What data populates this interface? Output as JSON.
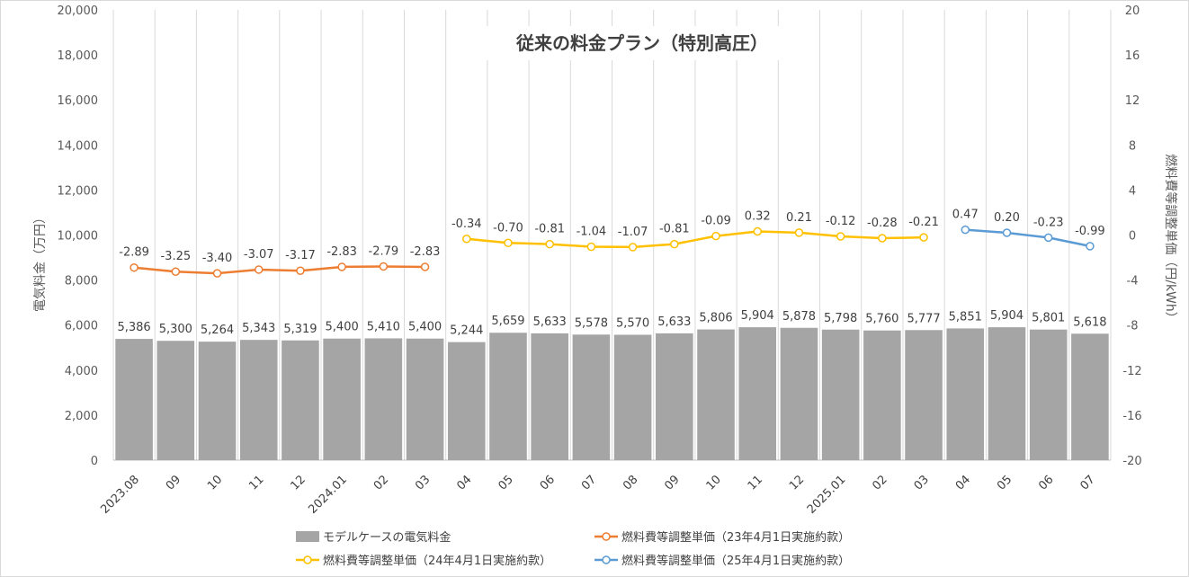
{
  "chart_data": {
    "type": "bar",
    "title": "従来の料金プラン（特別高圧）",
    "categories": [
      "2023.08",
      "09",
      "10",
      "11",
      "12",
      "2024.01",
      "02",
      "03",
      "04",
      "05",
      "06",
      "07",
      "08",
      "09",
      "10",
      "11",
      "12",
      "2025.01",
      "02",
      "03",
      "04",
      "05",
      "06",
      "07"
    ],
    "y_left": {
      "label": "電気料金（万円）",
      "range": [
        0,
        20000
      ],
      "ticks": [
        "0",
        "2,000",
        "4,000",
        "6,000",
        "8,000",
        "10,000",
        "12,000",
        "14,000",
        "16,000",
        "18,000",
        "20,000"
      ]
    },
    "y_right": {
      "label": "燃料費等調整単価（円/kWh）",
      "range": [
        -20,
        20
      ],
      "ticks": [
        "-20",
        "-16",
        "-12",
        "-8",
        "-4",
        "0",
        "4",
        "8",
        "12",
        "16",
        "20"
      ]
    },
    "bar_series": {
      "name": "モデルケースの電気料金",
      "color": "#a5a5a5",
      "values": [
        5386,
        5300,
        5264,
        5343,
        5319,
        5400,
        5410,
        5400,
        5244,
        5659,
        5633,
        5578,
        5570,
        5633,
        5806,
        5904,
        5878,
        5798,
        5760,
        5777,
        5851,
        5904,
        5801,
        5618
      ],
      "labels": [
        "5,386",
        "5,300",
        "5,264",
        "5,343",
        "5,319",
        "5,400",
        "5,410",
        "5,400",
        "5,244",
        "5,659",
        "5,633",
        "5,578",
        "5,570",
        "5,633",
        "5,806",
        "5,904",
        "5,878",
        "5,798",
        "5,760",
        "5,777",
        "5,851",
        "5,904",
        "5,801",
        "5,618"
      ]
    },
    "line_series": [
      {
        "name": "燃料費等調整単価（23年4月1日実施約款）",
        "color": "#ed7d31",
        "start": 0,
        "values": [
          -2.89,
          -3.25,
          -3.4,
          -3.07,
          -3.17,
          -2.83,
          -2.79,
          -2.83
        ],
        "labels": [
          "-2.89",
          "-3.25",
          "-3.40",
          "-3.07",
          "-3.17",
          "-2.83",
          "-2.79",
          "-2.83"
        ]
      },
      {
        "name": "燃料費等調整単価（24年4月1日実施約款）",
        "color": "#ffc000",
        "start": 8,
        "values": [
          -0.34,
          -0.7,
          -0.81,
          -1.04,
          -1.07,
          -0.81,
          -0.09,
          0.32,
          0.21,
          -0.12,
          -0.28,
          -0.21
        ],
        "labels": [
          "-0.34",
          "-0.70",
          "-0.81",
          "-1.04",
          "-1.07",
          "-0.81",
          "-0.09",
          "0.32",
          "0.21",
          "-0.12",
          "-0.28",
          "-0.21"
        ]
      },
      {
        "name": "燃料費等調整単価（25年4月1日実施約款）",
        "color": "#5b9bd5",
        "start": 20,
        "values": [
          0.47,
          0.2,
          -0.23,
          -0.99
        ],
        "labels": [
          "0.47",
          "0.20",
          "-0.23",
          "-0.99"
        ]
      }
    ],
    "grid": "vertical",
    "legend_position": "bottom"
  }
}
